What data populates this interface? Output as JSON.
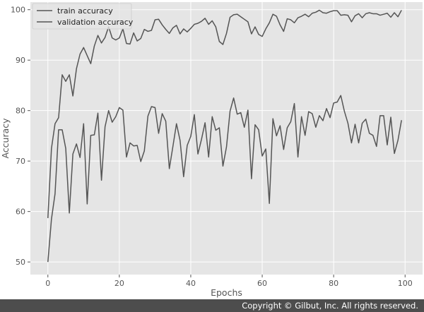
{
  "chart_data": {
    "type": "line",
    "title": "",
    "xlabel": "Epochs",
    "ylabel": "Accuracy",
    "xlim": [
      -4.9,
      104.9
    ],
    "ylim": [
      47.5,
      101.5
    ],
    "xticks": [
      0,
      20,
      40,
      60,
      80,
      100
    ],
    "yticks": [
      50,
      60,
      70,
      80,
      90,
      100
    ],
    "grid": true,
    "legend_position": "top-left",
    "line_color": "#555555",
    "x": [
      0,
      1,
      2,
      3,
      4,
      5,
      6,
      7,
      8,
      9,
      10,
      11,
      12,
      13,
      14,
      15,
      16,
      17,
      18,
      19,
      20,
      21,
      22,
      23,
      24,
      25,
      26,
      27,
      28,
      29,
      30,
      31,
      32,
      33,
      34,
      35,
      36,
      37,
      38,
      39,
      40,
      41,
      42,
      43,
      44,
      45,
      46,
      47,
      48,
      49,
      50,
      51,
      52,
      53,
      54,
      55,
      56,
      57,
      58,
      59,
      60,
      61,
      62,
      63,
      64,
      65,
      66,
      67,
      68,
      69,
      70,
      71,
      72,
      73,
      74,
      75,
      76,
      77,
      78,
      79,
      80,
      81,
      82,
      83,
      84,
      85,
      86,
      87,
      88,
      89,
      90,
      91,
      92,
      93,
      94,
      95,
      96,
      97,
      98,
      99
    ],
    "series": [
      {
        "name": "train accuracy",
        "values": [
          50.0,
          58.5,
          63.5,
          76.2,
          76.2,
          72.5,
          59.7,
          71.4,
          73.4,
          70.7,
          77.4,
          61.5,
          75.1,
          75.2,
          79.5,
          66.2,
          76.8,
          80.0,
          77.7,
          78.8,
          80.6,
          80.1,
          70.8,
          73.6,
          73.0,
          73.1,
          69.9,
          72.0,
          78.9,
          80.8,
          80.6,
          75.5,
          79.4,
          77.9,
          68.5,
          72.9,
          77.4,
          74.1,
          66.9,
          73.1,
          74.9,
          79.2,
          71.4,
          74.3,
          77.6,
          70.8,
          78.8,
          76.1,
          76.6,
          69.0,
          72.8,
          79.9,
          82.5,
          79.3,
          79.6,
          76.7,
          80.1,
          66.5,
          77.2,
          76.2,
          71.0,
          72.4,
          61.6,
          78.4,
          75.0,
          77.0,
          72.3,
          76.6,
          77.8,
          81.4,
          70.8,
          78.8,
          75.1,
          79.8,
          79.4,
          76.7,
          79.0,
          78.0,
          80.4,
          78.6,
          81.5,
          81.7,
          83.0,
          79.9,
          77.5,
          73.6,
          77.3,
          73.6,
          77.5,
          78.3,
          75.5,
          75.1,
          72.9,
          79.0,
          79.0,
          73.2,
          78.7,
          71.5,
          74.1,
          78.1
        ]
      },
      {
        "name": "validation accuracy",
        "values": [
          58.7,
          72.5,
          77.4,
          78.6,
          87.1,
          85.8,
          87.1,
          82.9,
          88.3,
          91.2,
          92.5,
          90.9,
          89.3,
          92.8,
          94.9,
          93.4,
          94.5,
          96.6,
          94.4,
          94.0,
          94.4,
          96.2,
          93.3,
          93.2,
          95.4,
          93.8,
          94.3,
          96.1,
          95.7,
          95.9,
          98.0,
          98.1,
          97.0,
          96.1,
          95.3,
          96.4,
          96.9,
          95.2,
          96.2,
          95.6,
          96.3,
          97.1,
          97.3,
          97.7,
          98.3,
          97.1,
          97.8,
          96.6,
          93.7,
          93.1,
          95.3,
          98.5,
          99.0,
          99.1,
          98.6,
          98.1,
          97.6,
          95.2,
          96.6,
          95.1,
          94.7,
          96.2,
          97.4,
          99.1,
          98.7,
          97.0,
          95.7,
          98.2,
          98.0,
          97.4,
          98.4,
          98.7,
          99.1,
          98.6,
          99.3,
          99.5,
          99.9,
          99.4,
          99.3,
          99.6,
          99.8,
          99.8,
          98.9,
          99.0,
          98.9,
          97.6,
          98.8,
          99.2,
          98.4,
          99.2,
          99.4,
          99.2,
          99.2,
          98.9,
          99.1,
          99.3,
          98.5,
          99.4,
          98.6,
          99.9
        ]
      }
    ]
  },
  "footer": {
    "copyright": "Copyright © Gilbut, Inc. All rights reserved."
  }
}
